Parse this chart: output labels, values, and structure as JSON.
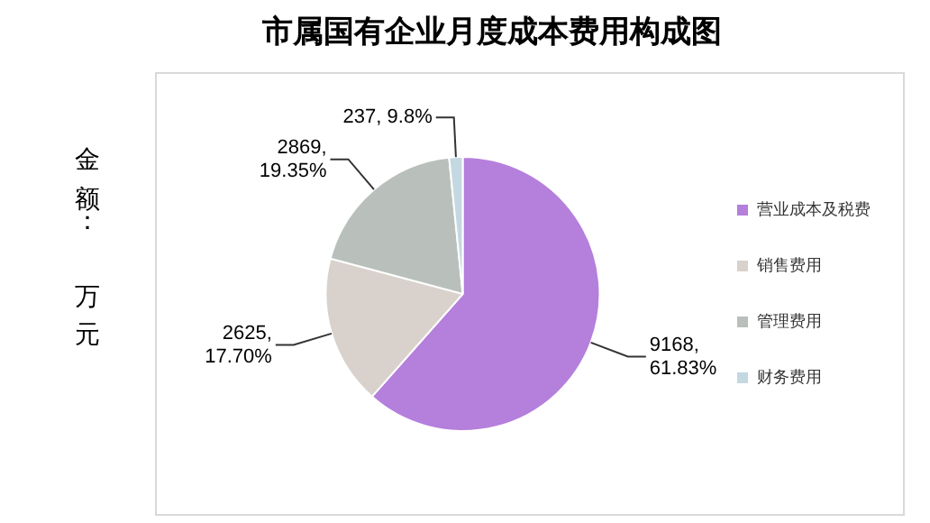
{
  "chart_data": {
    "type": "pie",
    "title": "市属国有企业月度成本费用构成图",
    "ylabel": "金额：万元",
    "categories": [
      "营业成本及税费",
      "销售费用",
      "管理费用",
      "财务费用"
    ],
    "values": [
      9168,
      2625,
      2869,
      237
    ],
    "colors": [
      "#b57fdc",
      "#d9d2cc",
      "#b9c0bb",
      "#c4d8e2"
    ],
    "value_labels": [
      "9168,\n61.83%",
      "2625,\n17.70%",
      "2869,\n19.35%",
      "237, 9.8%"
    ],
    "legend": "right"
  }
}
